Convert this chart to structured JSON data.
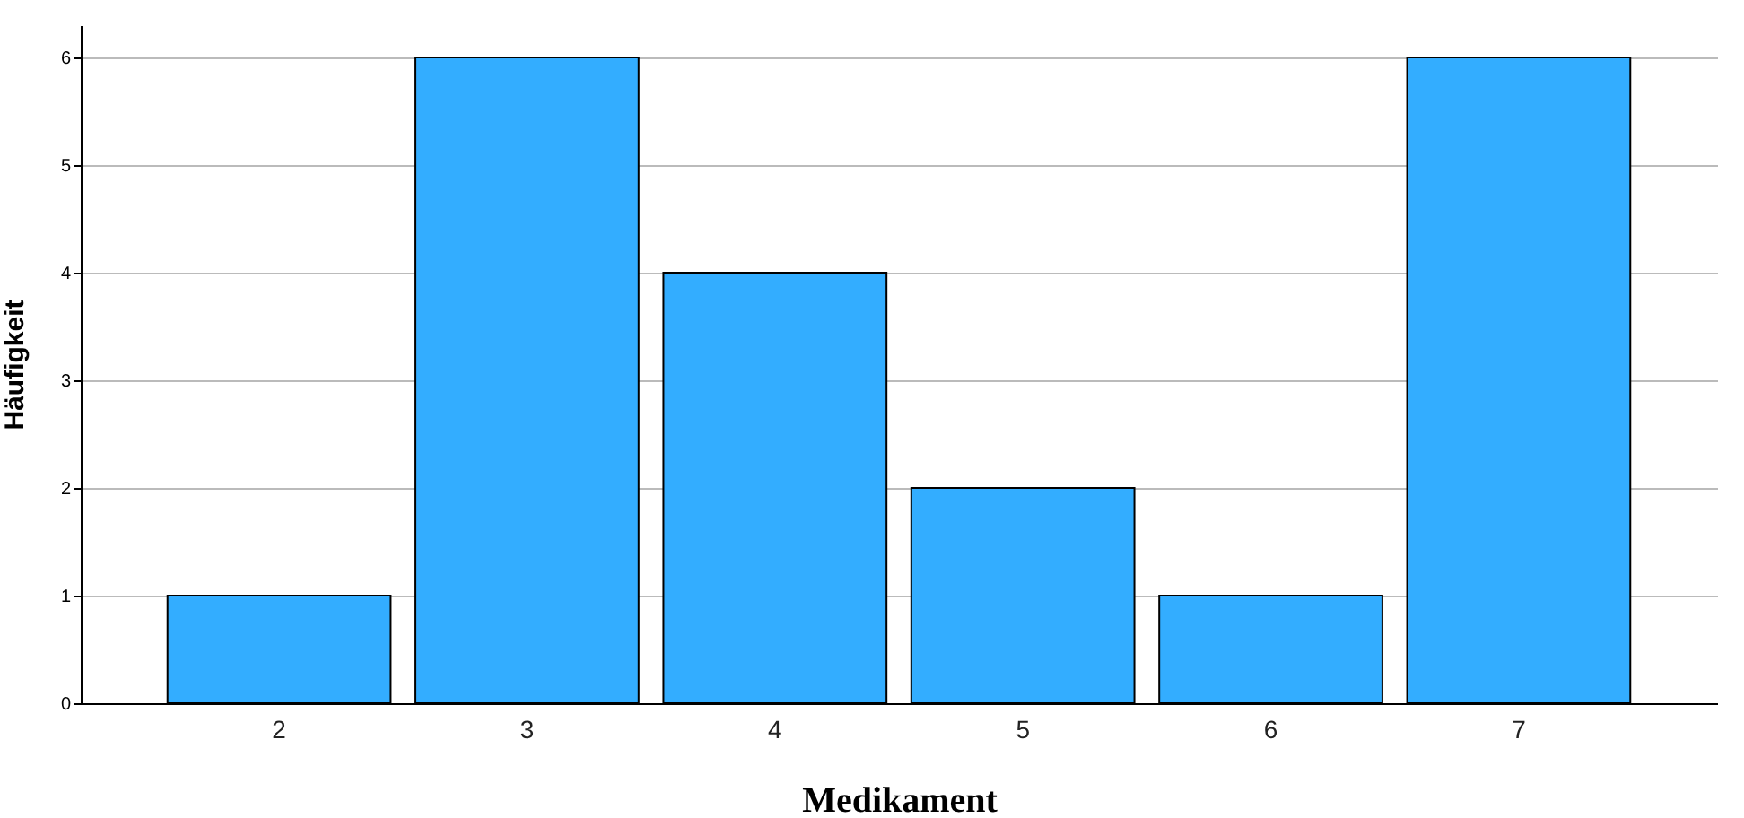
{
  "chart_data": {
    "type": "bar",
    "xlabel": "Medikament",
    "ylabel": "Häufigkeit",
    "categories": [
      "2",
      "3",
      "4",
      "5",
      "6",
      "7"
    ],
    "values": [
      1,
      6,
      4,
      2,
      1,
      6
    ],
    "color": "#33adff",
    "ylim": [
      0,
      6.3
    ],
    "yticks": [
      0,
      1,
      2,
      3,
      4,
      5,
      6
    ],
    "grid": "y"
  }
}
